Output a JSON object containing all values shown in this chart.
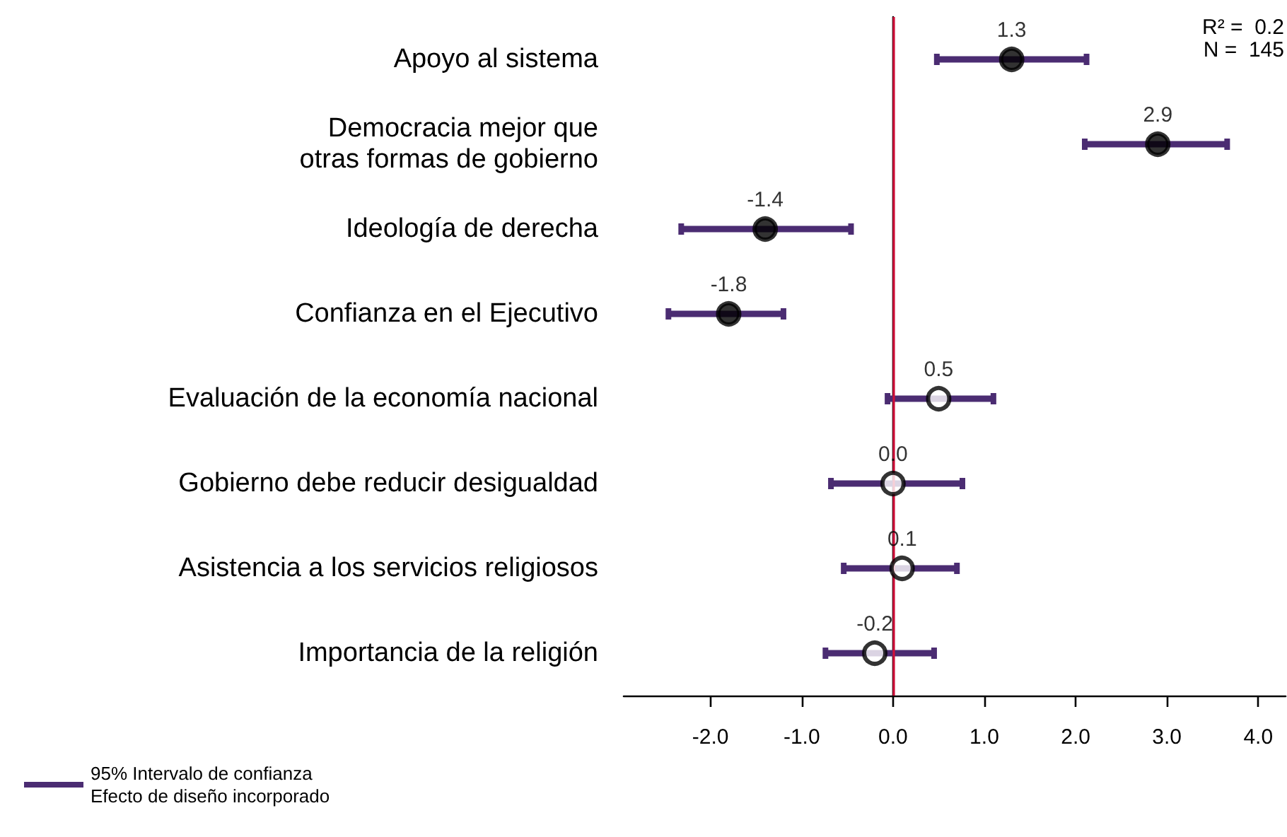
{
  "chart_data": {
    "type": "scatter",
    "orientation": "horizontal",
    "categories": [
      "Apoyo al sistema",
      "Democracia mejor que\notras formas de gobierno",
      "Ideología de derecha",
      "Confianza en el Ejecutivo",
      "Evaluación de la economía nacional",
      "Gobierno debe reducir desigualdad",
      "Asistencia a los servicios religiosos",
      "Importancia de la religión"
    ],
    "series": [
      {
        "name": "95% Intervalo de confianza\nEfecto de diseño incorporado",
        "color": "#4b2c72",
        "values": [
          1.3,
          2.9,
          -1.4,
          -1.8,
          0.5,
          0.0,
          0.1,
          -0.2
        ],
        "value_labels": [
          "1.3",
          "2.9",
          "-1.4",
          "-1.8",
          "0.5",
          "0.0",
          "0.1",
          "-0.2"
        ],
        "colors": [
          "#000000",
          "#000000",
          "#000000",
          "#000000",
          "#ffffff",
          "#ffffff",
          "#ffffff",
          "#ffffff"
        ],
        "errors": [
          [
            0.48,
            2.12
          ],
          [
            2.1,
            3.66
          ],
          [
            -2.32,
            -0.46
          ],
          [
            -2.46,
            -1.2
          ],
          [
            -0.06,
            1.1
          ],
          [
            -0.68,
            0.76
          ],
          [
            -0.54,
            0.7
          ],
          [
            -0.74,
            0.45
          ]
        ]
      }
    ],
    "xlim": [
      -2.95,
      4.3
    ],
    "xticks": [
      {
        "value": -2,
        "label": "-2.0"
      },
      {
        "value": -1,
        "label": "-1.0"
      },
      {
        "value": 0,
        "label": "0.0"
      },
      {
        "value": 1,
        "label": "1.0"
      },
      {
        "value": 2,
        "label": "2.0"
      },
      {
        "value": 3,
        "label": "3.0"
      },
      {
        "value": 4,
        "label": "4.0"
      }
    ],
    "ref_lines": [
      {
        "axis": "x",
        "value": 0,
        "label": null,
        "color": "#d0103a"
      }
    ],
    "annotations": [
      "R² =  0.2",
      "N =  145"
    ],
    "marker": "circle",
    "grid": false,
    "legend": "bottom left"
  }
}
